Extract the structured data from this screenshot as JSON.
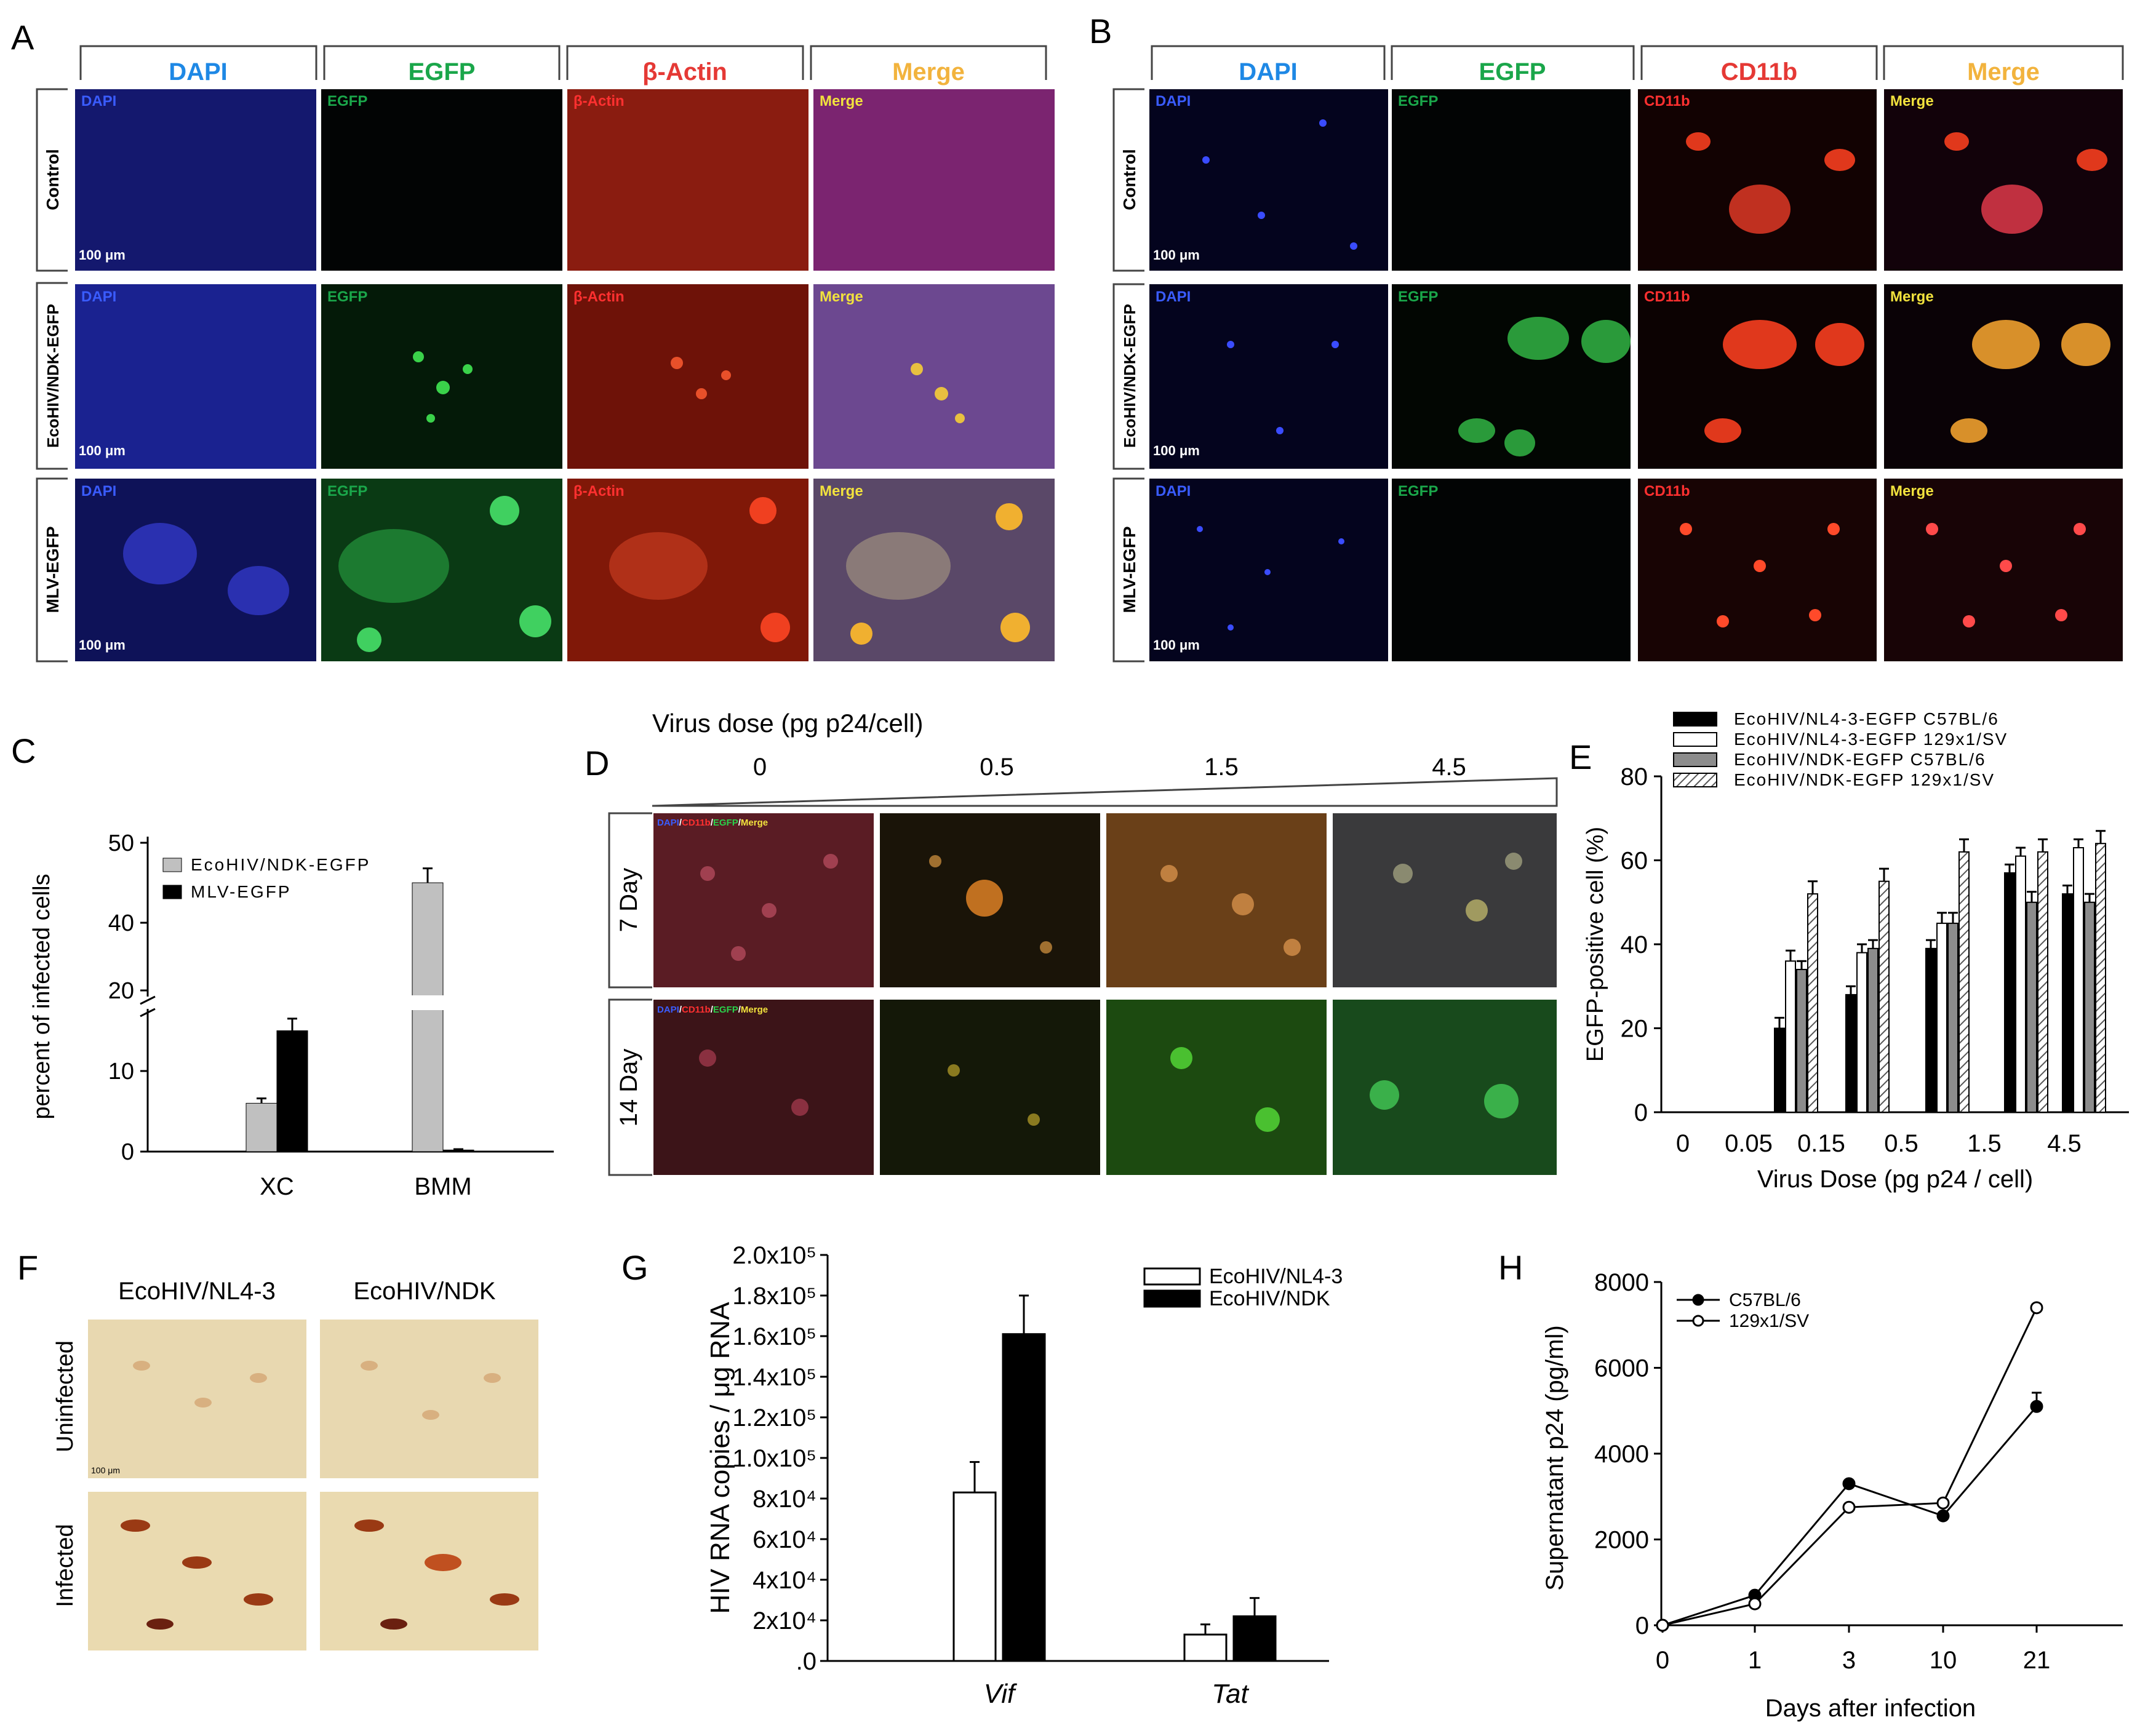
{
  "panels": {
    "A": {
      "letter": "A",
      "column_headers": [
        "DAPI",
        "EGFP",
        "β-Actin",
        "Merge"
      ],
      "header_colors": [
        "#1e88e5",
        "#1aa64a",
        "#e53935",
        "#f2b33d"
      ],
      "row_labels": [
        "Control",
        "EcoHIV/NDK-EGFP",
        "MLV-EGFP"
      ],
      "tile_labels": [
        "DAPI",
        "EGFP",
        "β-Actin",
        "Merge"
      ],
      "scale_bar": "100 μm"
    },
    "B": {
      "letter": "B",
      "column_headers": [
        "DAPI",
        "EGFP",
        "CD11b",
        "Merge"
      ],
      "header_colors": [
        "#1e88e5",
        "#1aa64a",
        "#e53935",
        "#f2b33d"
      ],
      "row_labels": [
        "Control",
        "EcoHIV/NDK-EGFP",
        "MLV-EGFP"
      ],
      "tile_labels": [
        "DAPI",
        "EGFP",
        "CD11b",
        "Merge"
      ],
      "scale_bar": "100 μm"
    },
    "C": {
      "letter": "C"
    },
    "D": {
      "letter": "D",
      "title": "Virus dose (pg p24/cell)",
      "doses": [
        "0",
        "0.5",
        "1.5",
        "4.5"
      ],
      "row_labels": [
        "7 Day",
        "14 Day"
      ],
      "tile_label_parts": [
        "DAPI",
        "/",
        "CD11b",
        "/",
        "EGFP",
        "/",
        "Merge"
      ]
    },
    "E": {
      "letter": "E"
    },
    "F": {
      "letter": "F",
      "column_headers": [
        "EcoHIV/NL4-3",
        "EcoHIV/NDK"
      ],
      "row_labels": [
        "Uninfected",
        "Infected"
      ],
      "scale_bar": "100 μm"
    },
    "G": {
      "letter": "G"
    },
    "H": {
      "letter": "H"
    }
  },
  "chart_data": [
    {
      "panel": "C",
      "type": "bar",
      "categories": [
        "XC",
        "BMM"
      ],
      "series": [
        {
          "name": "EcoHIV/NDK-EGFP",
          "values": [
            6,
            45
          ],
          "errors": [
            0.6,
            1.8
          ],
          "color": "#c0c0c0"
        },
        {
          "name": "MLV-EGFP",
          "values": [
            15,
            0.2
          ],
          "errors": [
            1.5,
            0.1
          ],
          "color": "#000000"
        }
      ],
      "ylabel": "percent of infected cells",
      "yticks": [
        "0",
        "10",
        "20",
        "40",
        "50"
      ],
      "axis_break": [
        20,
        38
      ],
      "ylim": [
        0,
        50
      ],
      "legend_position": "top-left"
    },
    {
      "panel": "E",
      "type": "bar",
      "categories": [
        "0",
        "0.05",
        "0.15",
        "0.5",
        "1.5",
        "4.5"
      ],
      "series": [
        {
          "name": "EcoHIV/NL4-3-EGFP C57BL/6",
          "values": [
            0,
            20,
            28,
            39,
            57,
            52
          ],
          "errors": [
            0,
            2.5,
            2,
            2,
            2,
            2
          ],
          "color": "#000000"
        },
        {
          "name": "EcoHIV/NL4-3-EGFP 129x1/SV",
          "values": [
            0,
            36,
            38,
            45,
            61,
            63
          ],
          "errors": [
            0,
            2.5,
            2,
            2.5,
            2,
            2
          ],
          "color": "#ffffff"
        },
        {
          "name": "EcoHIV/NDK-EGFP C57BL/6",
          "values": [
            0,
            34,
            39,
            45,
            50,
            50
          ],
          "errors": [
            0,
            2,
            2,
            2.5,
            2.5,
            2
          ],
          "color": "#8c8c8c"
        },
        {
          "name": "EcoHIV/NDK-EGFP 129x1/SV",
          "values": [
            0,
            52,
            55,
            62,
            62,
            64
          ],
          "errors": [
            0,
            3,
            3,
            3,
            3,
            3
          ],
          "color": "hatched"
        }
      ],
      "xlabel": "Virus Dose (pg p24 / cell)",
      "ylabel": "EGFP-positive cell (%)",
      "yticks": [
        "0",
        "20",
        "40",
        "60",
        "80"
      ],
      "ylim": [
        0,
        80
      ],
      "legend_position": "top"
    },
    {
      "panel": "G",
      "type": "bar",
      "categories": [
        "Vif",
        "Tat"
      ],
      "series": [
        {
          "name": "EcoHIV/NL4-3",
          "values": [
            83000,
            13000
          ],
          "errors": [
            15000,
            5000
          ],
          "color": "#ffffff"
        },
        {
          "name": "EcoHIV/NDK",
          "values": [
            161000,
            22000
          ],
          "errors": [
            19000,
            9000
          ],
          "color": "#000000"
        }
      ],
      "ylabel": "HIV RNA copies / μg RNA",
      "yticks": [
        ".0",
        "2x10⁴",
        "4x10⁴",
        "6x10⁴",
        "8x10⁴",
        "1.0x10⁵",
        "1.2x10⁵",
        "1.4x10⁵",
        "1.6x10⁵",
        "1.8x10⁵",
        "2.0x10⁵"
      ],
      "ylim": [
        0,
        200000
      ],
      "legend_position": "top-right"
    },
    {
      "panel": "H",
      "type": "line",
      "x": [
        "0",
        "1",
        "3",
        "10",
        "21"
      ],
      "series": [
        {
          "name": "C57BL/6",
          "values": [
            0,
            700,
            3300,
            2550,
            5100
          ],
          "errors": [
            0,
            80,
            60,
            80,
            320
          ],
          "marker": "filled"
        },
        {
          "name": "129x1/SV",
          "values": [
            0,
            500,
            2750,
            2850,
            7400
          ],
          "errors": [
            0,
            60,
            60,
            60,
            80
          ],
          "marker": "open"
        }
      ],
      "xlabel": "Days after infection",
      "ylabel": "Supernatant p24 (pg/ml)",
      "yticks": [
        "0",
        "2000",
        "4000",
        "6000",
        "8000"
      ],
      "ylim": [
        0,
        8000
      ],
      "legend_position": "top-left"
    }
  ]
}
